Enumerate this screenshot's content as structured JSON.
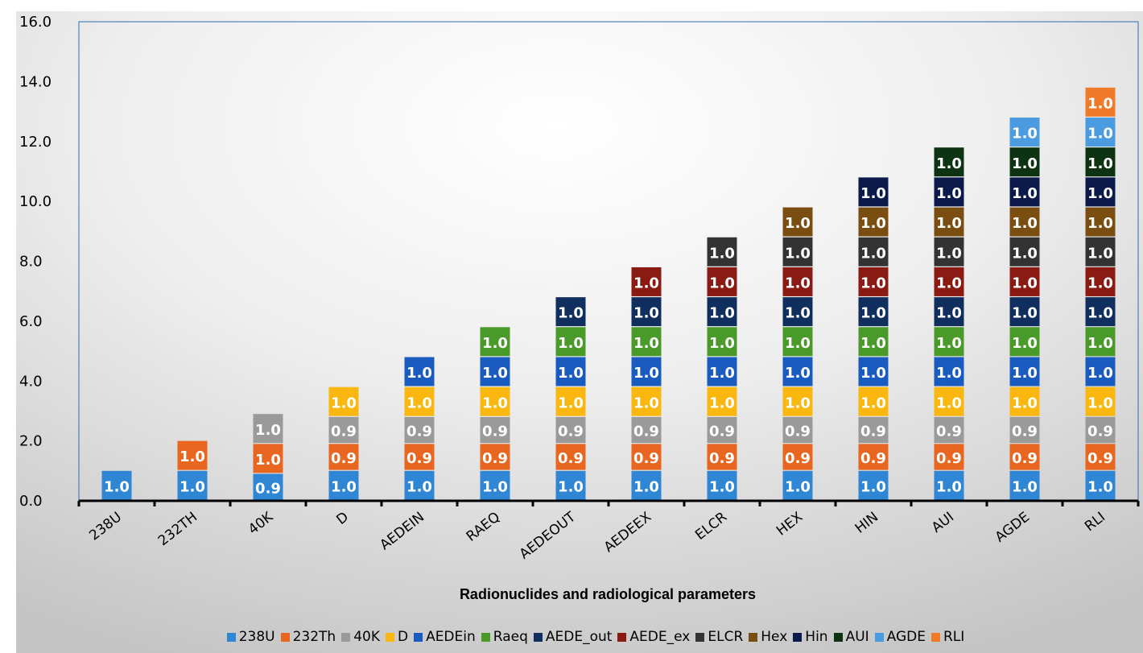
{
  "chart_data": {
    "type": "bar",
    "stacked": true,
    "xlabel": "Radionuclides and radiological parameters",
    "ylabel": "",
    "ylim": [
      0,
      16
    ],
    "yticks": [
      "0.0",
      "2.0",
      "4.0",
      "6.0",
      "8.0",
      "10.0",
      "12.0",
      "14.0",
      "16.0"
    ],
    "grid": false,
    "legend_position": "bottom",
    "categories": [
      "238U",
      "232TH",
      "40K",
      "D",
      "AEDEIN",
      "RAEQ",
      "AEDEOUT",
      "AEDEEX",
      "ELCR",
      "HEX",
      "HIN",
      "AUI",
      "AGDE",
      "RLI"
    ],
    "series": [
      {
        "name": "238U",
        "color": "#2e86d4",
        "values": [
          1.0,
          1.0,
          0.9,
          1.0,
          1.0,
          1.0,
          1.0,
          1.0,
          1.0,
          1.0,
          1.0,
          1.0,
          1.0,
          1.0
        ],
        "labels": [
          "1.0",
          "1.0",
          "0.9",
          "1.0",
          "1.0",
          "1.0",
          "1.0",
          "1.0",
          "1.0",
          "1.0",
          "1.0",
          "1.0",
          "1.0",
          "1.0"
        ]
      },
      {
        "name": "232Th",
        "color": "#e8661f",
        "values": [
          null,
          1.0,
          1.0,
          0.9,
          0.9,
          0.9,
          0.9,
          0.9,
          0.9,
          0.9,
          0.9,
          0.9,
          0.9,
          0.9
        ],
        "labels": [
          "",
          "1.0",
          "1.0",
          "0.9",
          "0.9",
          "0.9",
          "0.9",
          "0.9",
          "0.9",
          "0.9",
          "0.9",
          "0.9",
          "0.9",
          "0.9"
        ]
      },
      {
        "name": "40K",
        "color": "#9a9a9a",
        "values": [
          null,
          null,
          1.0,
          0.9,
          0.9,
          0.9,
          0.9,
          0.9,
          0.9,
          0.9,
          0.9,
          0.9,
          0.9,
          0.9
        ],
        "labels": [
          "",
          "",
          "1.0",
          "0.9",
          "0.9",
          "0.9",
          "0.9",
          "0.9",
          "0.9",
          "0.9",
          "0.9",
          "0.9",
          "0.9",
          "0.9"
        ]
      },
      {
        "name": "D",
        "color": "#f9b70f",
        "values": [
          null,
          null,
          null,
          1.0,
          1.0,
          1.0,
          1.0,
          1.0,
          1.0,
          1.0,
          1.0,
          1.0,
          1.0,
          1.0
        ],
        "labels": [
          "",
          "",
          "",
          "1.0",
          "1.0",
          "1.0",
          "1.0",
          "1.0",
          "1.0",
          "1.0",
          "1.0",
          "1.0",
          "1.0",
          "1.0"
        ]
      },
      {
        "name": "AEDEin",
        "color": "#1a5bbf",
        "values": [
          null,
          null,
          null,
          null,
          1.0,
          1.0,
          1.0,
          1.0,
          1.0,
          1.0,
          1.0,
          1.0,
          1.0,
          1.0
        ],
        "labels": [
          "",
          "",
          "",
          "",
          "1.0",
          "1.0",
          "1.0",
          "1.0",
          "1.0",
          "1.0",
          "1.0",
          "1.0",
          "1.0",
          "1.0"
        ]
      },
      {
        "name": "Raeq",
        "color": "#4a9a2a",
        "values": [
          null,
          null,
          null,
          null,
          null,
          1.0,
          1.0,
          1.0,
          1.0,
          1.0,
          1.0,
          1.0,
          1.0,
          1.0
        ],
        "labels": [
          "",
          "",
          "",
          "",
          "",
          "1.0",
          "1.0",
          "1.0",
          "1.0",
          "1.0",
          "1.0",
          "1.0",
          "1.0",
          "1.0"
        ]
      },
      {
        "name": "AEDE_out",
        "color": "#112f5e",
        "values": [
          null,
          null,
          null,
          null,
          null,
          null,
          1.0,
          1.0,
          1.0,
          1.0,
          1.0,
          1.0,
          1.0,
          1.0
        ],
        "labels": [
          "",
          "",
          "",
          "",
          "",
          "",
          "1.0",
          "1.0",
          "1.0",
          "1.0",
          "1.0",
          "1.0",
          "1.0",
          "1.0"
        ]
      },
      {
        "name": "AEDE_ex",
        "color": "#8a1a12",
        "values": [
          null,
          null,
          null,
          null,
          null,
          null,
          null,
          1.0,
          1.0,
          1.0,
          1.0,
          1.0,
          1.0,
          1.0
        ],
        "labels": [
          "",
          "",
          "",
          "",
          "",
          "",
          "",
          "1.0",
          "1.0",
          "1.0",
          "1.0",
          "1.0",
          "1.0",
          "1.0"
        ]
      },
      {
        "name": "ELCR",
        "color": "#333333",
        "values": [
          null,
          null,
          null,
          null,
          null,
          null,
          null,
          null,
          1.0,
          1.0,
          1.0,
          1.0,
          1.0,
          1.0
        ],
        "labels": [
          "",
          "",
          "",
          "",
          "",
          "",
          "",
          "",
          "1.0",
          "1.0",
          "1.0",
          "1.0",
          "1.0",
          "1.0"
        ]
      },
      {
        "name": "Hex",
        "color": "#7a4d10",
        "values": [
          null,
          null,
          null,
          null,
          null,
          null,
          null,
          null,
          null,
          1.0,
          1.0,
          1.0,
          1.0,
          1.0
        ],
        "labels": [
          "",
          "",
          "",
          "",
          "",
          "",
          "",
          "",
          "",
          "1.0",
          "1.0",
          "1.0",
          "1.0",
          "1.0"
        ]
      },
      {
        "name": "Hin",
        "color": "#0b1a4a",
        "values": [
          null,
          null,
          null,
          null,
          null,
          null,
          null,
          null,
          null,
          null,
          1.0,
          1.0,
          1.0,
          1.0
        ],
        "labels": [
          "",
          "",
          "",
          "",
          "",
          "",
          "",
          "",
          "",
          "",
          "1.0",
          "1.0",
          "1.0",
          "1.0"
        ]
      },
      {
        "name": "AUI",
        "color": "#0d3312",
        "values": [
          null,
          null,
          null,
          null,
          null,
          null,
          null,
          null,
          null,
          null,
          null,
          1.0,
          1.0,
          1.0
        ],
        "labels": [
          "",
          "",
          "",
          "",
          "",
          "",
          "",
          "",
          "",
          "",
          "",
          "1.0",
          "1.0",
          "1.0"
        ]
      },
      {
        "name": "AGDE",
        "color": "#4a9be0",
        "values": [
          null,
          null,
          null,
          null,
          null,
          null,
          null,
          null,
          null,
          null,
          null,
          null,
          1.0,
          1.0
        ],
        "labels": [
          "",
          "",
          "",
          "",
          "",
          "",
          "",
          "",
          "",
          "",
          "",
          "",
          "1.0",
          "1.0"
        ]
      },
      {
        "name": "RLI",
        "color": "#f07a2a",
        "values": [
          null,
          null,
          null,
          null,
          null,
          null,
          null,
          null,
          null,
          null,
          null,
          null,
          null,
          1.0
        ],
        "labels": [
          "",
          "",
          "",
          "",
          "",
          "",
          "",
          "",
          "",
          "",
          "",
          "",
          "",
          "1.0"
        ]
      }
    ]
  }
}
